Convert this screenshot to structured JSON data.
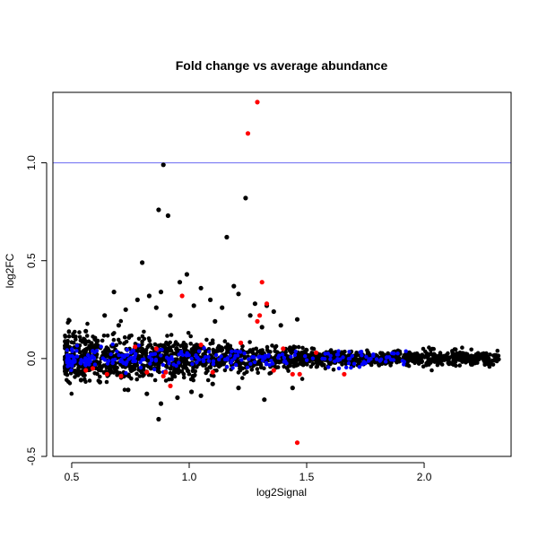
{
  "chart_data": {
    "type": "scatter",
    "title": "Fold change vs average abundance",
    "xlabel": "log2Signal",
    "ylabel": "log2FC",
    "xlim": [
      0.42,
      2.37
    ],
    "ylim": [
      -0.5,
      1.36
    ],
    "x_ticks": [
      0.5,
      1.0,
      1.5,
      2.0
    ],
    "x_tick_labels": [
      "0.5",
      "1.0",
      "1.5",
      "2.0"
    ],
    "y_ticks": [
      -0.5,
      0.0,
      0.5,
      1.0
    ],
    "y_tick_labels": [
      "-0.5",
      "0.0",
      "0.5",
      "1.0"
    ],
    "grid": false,
    "legend": "none",
    "reference_line": {
      "y": 1.0,
      "color": "#6a6af2"
    },
    "colors": {
      "black": "#000000",
      "blue": "#0000ff",
      "red": "#ff0000"
    },
    "series": [
      {
        "color": "black",
        "points": [
          [
            0.89,
            0.99
          ],
          [
            0.87,
            0.76
          ],
          [
            0.91,
            0.73
          ],
          [
            1.24,
            0.82
          ],
          [
            1.16,
            0.62
          ],
          [
            0.8,
            0.49
          ],
          [
            0.99,
            0.43
          ],
          [
            1.19,
            0.37
          ],
          [
            1.05,
            0.36
          ],
          [
            0.96,
            0.39
          ],
          [
            0.68,
            0.34
          ],
          [
            0.78,
            0.3
          ],
          [
            0.83,
            0.32
          ],
          [
            0.88,
            0.34
          ],
          [
            1.09,
            0.3
          ],
          [
            1.21,
            0.33
          ],
          [
            1.33,
            0.27
          ],
          [
            1.36,
            0.24
          ],
          [
            0.73,
            0.25
          ],
          [
            0.86,
            0.26
          ],
          [
            1.02,
            0.27
          ],
          [
            1.14,
            0.26
          ],
          [
            1.28,
            0.28
          ],
          [
            1.46,
            0.2
          ],
          [
            0.64,
            0.22
          ],
          [
            0.92,
            0.22
          ],
          [
            1.26,
            0.22
          ],
          [
            1.39,
            0.17
          ],
          [
            0.56,
            0.14
          ],
          [
            0.7,
            0.17
          ],
          [
            1.11,
            0.19
          ],
          [
            1.31,
            0.16
          ],
          [
            0.87,
            -0.31
          ],
          [
            0.88,
            -0.23
          ],
          [
            0.95,
            -0.2
          ],
          [
            1.05,
            -0.19
          ],
          [
            1.32,
            -0.21
          ],
          [
            0.74,
            -0.16
          ],
          [
            0.82,
            -0.18
          ],
          [
            1.01,
            -0.17
          ],
          [
            0.62,
            -0.12
          ],
          [
            1.21,
            -0.15
          ],
          [
            1.44,
            -0.15
          ],
          [
            0.54,
            -0.11
          ],
          [
            1.1,
            -0.13
          ]
        ]
      },
      {
        "color": "red",
        "points": [
          [
            1.29,
            1.31
          ],
          [
            1.25,
            1.15
          ],
          [
            1.31,
            0.39
          ],
          [
            1.33,
            0.28
          ],
          [
            1.3,
            0.22
          ],
          [
            0.97,
            0.32
          ],
          [
            1.29,
            0.19
          ],
          [
            1.46,
            -0.43
          ],
          [
            1.05,
            0.07
          ],
          [
            0.77,
            0.06
          ],
          [
            0.86,
            0.05
          ],
          [
            1.22,
            0.08
          ],
          [
            1.4,
            0.05
          ],
          [
            1.54,
            0.03
          ],
          [
            0.59,
            -0.05
          ],
          [
            0.65,
            -0.08
          ],
          [
            0.71,
            -0.09
          ],
          [
            0.82,
            -0.07
          ],
          [
            0.9,
            -0.07
          ],
          [
            1.1,
            -0.07
          ],
          [
            1.36,
            -0.06
          ],
          [
            1.44,
            -0.08
          ],
          [
            1.47,
            -0.08
          ],
          [
            1.66,
            -0.08
          ],
          [
            0.92,
            -0.14
          ],
          [
            0.56,
            -0.06
          ],
          [
            0.89,
            -0.09
          ]
        ]
      }
    ]
  }
}
